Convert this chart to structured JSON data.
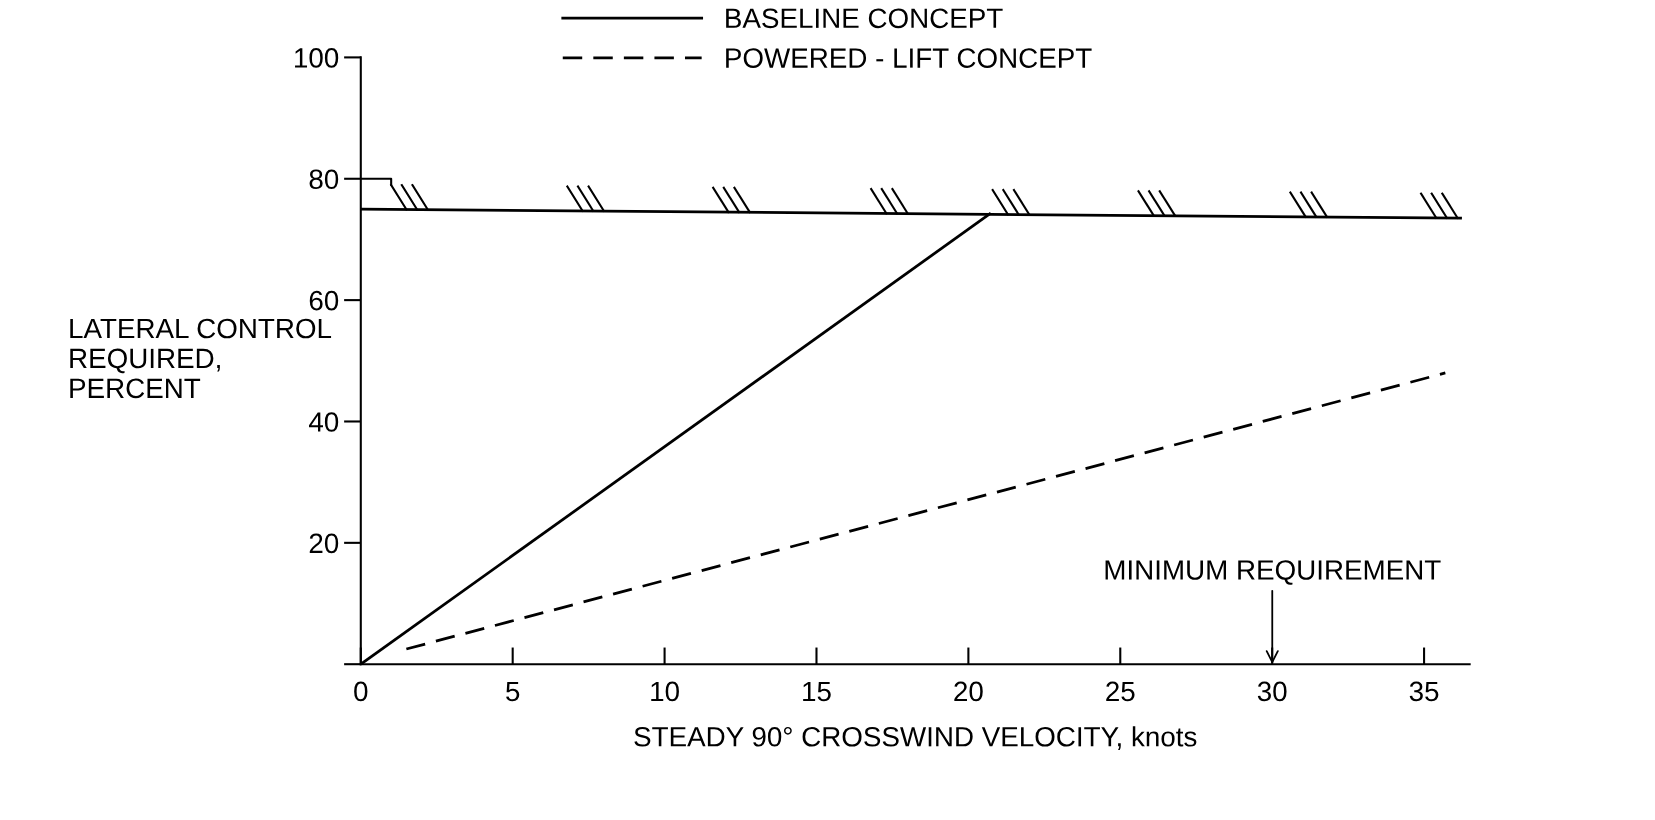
{
  "chart_data": {
    "type": "line",
    "xlabel": "STEADY 90° CROSSWIND VELOCITY, knots",
    "ylabel": "LATERAL CONTROL\nREQUIRED,\nPERCENT",
    "xlim": [
      0,
      36.5
    ],
    "xticks": [
      0,
      5,
      10,
      15,
      20,
      25,
      30,
      35
    ],
    "ylim": [
      0,
      100
    ],
    "yticks": [
      {
        "value": 0,
        "label": null
      },
      20,
      40,
      60,
      80,
      100
    ],
    "series": [
      {
        "name": "BASELINE CONCEPT",
        "color": "#000000",
        "line_style": "solid",
        "x": [
          0,
          20.7
        ],
        "values": [
          0,
          74.2
        ]
      },
      {
        "name": "POWERED - LIFT CONCEPT",
        "color": "#000000",
        "line_style": "dashed",
        "x": [
          1.5,
          35.7
        ],
        "values": [
          2.5,
          48
        ]
      },
      {
        "color": "#000000",
        "line_style": "solid",
        "x": [
          0,
          36.2
        ],
        "values": [
          75,
          73.5
        ]
      }
    ],
    "annotations": [
      "MINIMUM REQUIREMENT"
    ],
    "legend": "top",
    "grid": false,
    "marker": "none"
  }
}
